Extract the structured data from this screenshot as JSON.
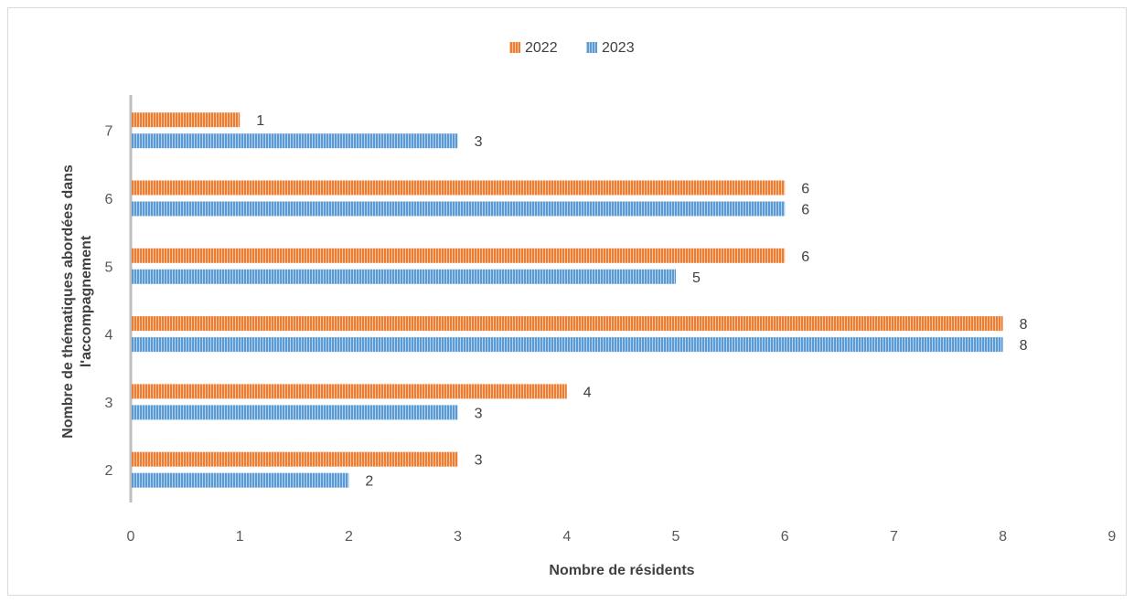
{
  "chart_data": {
    "type": "bar",
    "orientation": "horizontal",
    "title": "",
    "xlabel": "Nombre de résidents",
    "ylabel": "Nombre de thématiques abordées dans l'accompagnement",
    "categories": [
      "2",
      "3",
      "4",
      "5",
      "6",
      "7"
    ],
    "series": [
      {
        "name": "2022",
        "values": [
          3,
          4,
          8,
          6,
          6,
          1
        ],
        "color": "#ed7d31",
        "label_values": [
          "3",
          "4",
          "8",
          "6",
          "6",
          "1"
        ]
      },
      {
        "name": "2023",
        "values": [
          2,
          3,
          8,
          5,
          6,
          3
        ],
        "color": "#5b9bd5",
        "label_values": [
          "2",
          "3",
          "8",
          "5",
          "6",
          "3"
        ]
      }
    ],
    "xlim": [
      0,
      9
    ],
    "x_ticks": [
      "0",
      "1",
      "2",
      "3",
      "4",
      "5",
      "6",
      "7",
      "8",
      "9"
    ],
    "grid": false,
    "legend_position": "top-center",
    "fill_pattern": "vertical-stripes",
    "data_labels": true
  }
}
